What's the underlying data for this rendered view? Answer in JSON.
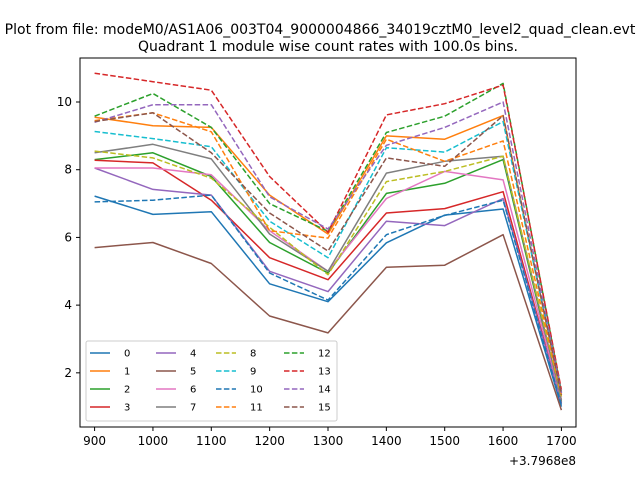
{
  "figure": {
    "suptitle": "Plot from file: modeM0/AS1A06_003T04_9000004866_34019cztM0_level2_quad_clean.evt"
  },
  "chart_data": {
    "type": "line",
    "title": "Quadrant 1 module wise count rates with 100.0s bins.",
    "xlabel": "",
    "ylabel": "",
    "x_offset_label": "+3.7968e8",
    "x": [
      900,
      1000,
      1100,
      1200,
      1300,
      1400,
      1500,
      1600,
      1700
    ],
    "xlim": [
      875,
      1725
    ],
    "ylim": [
      0.4,
      11.3
    ],
    "xticks": [
      900,
      1000,
      1100,
      1200,
      1300,
      1400,
      1500,
      1600,
      1700
    ],
    "yticks": [
      2,
      4,
      6,
      8,
      10
    ],
    "grid": false,
    "legend_location": "lower-left",
    "series": [
      {
        "name": "0",
        "color": "#1f77b4",
        "dashed": false,
        "values": [
          7.22,
          6.68,
          6.76,
          4.63,
          4.1,
          5.84,
          6.66,
          6.84,
          1.0
        ]
      },
      {
        "name": "1",
        "color": "#ff7f0e",
        "dashed": false,
        "values": [
          9.55,
          9.3,
          9.25,
          7.25,
          6.1,
          9.0,
          8.9,
          9.6,
          1.3
        ]
      },
      {
        "name": "2",
        "color": "#2ca02c",
        "dashed": false,
        "values": [
          8.3,
          8.5,
          7.8,
          5.85,
          4.95,
          7.3,
          7.6,
          8.3,
          1.15
        ]
      },
      {
        "name": "3",
        "color": "#d62728",
        "dashed": false,
        "values": [
          8.28,
          8.2,
          7.1,
          5.4,
          4.75,
          6.72,
          6.85,
          7.35,
          1.1
        ]
      },
      {
        "name": "4",
        "color": "#9467bd",
        "dashed": false,
        "values": [
          8.05,
          7.42,
          7.25,
          5.0,
          4.4,
          6.48,
          6.35,
          7.15,
          1.1
        ]
      },
      {
        "name": "5",
        "color": "#8c564b",
        "dashed": false,
        "values": [
          5.7,
          5.85,
          5.23,
          3.68,
          3.18,
          5.12,
          5.18,
          6.08,
          0.9
        ]
      },
      {
        "name": "6",
        "color": "#e377c2",
        "dashed": false,
        "values": [
          8.05,
          8.05,
          7.85,
          6.2,
          5.0,
          7.15,
          7.95,
          7.7,
          1.2
        ]
      },
      {
        "name": "7",
        "color": "#7f7f7f",
        "dashed": false,
        "values": [
          8.5,
          8.75,
          8.32,
          6.1,
          5.0,
          7.9,
          8.25,
          8.4,
          1.2
        ]
      },
      {
        "name": "8",
        "color": "#bcbd22",
        "dashed": true,
        "values": [
          8.55,
          8.35,
          7.75,
          6.3,
          4.9,
          7.65,
          7.95,
          8.4,
          1.3
        ]
      },
      {
        "name": "9",
        "color": "#17becf",
        "dashed": true,
        "values": [
          9.13,
          8.92,
          8.68,
          6.48,
          5.4,
          8.65,
          8.52,
          9.42,
          1.4
        ]
      },
      {
        "name": "10",
        "color": "#1f77b4",
        "dashed": true,
        "values": [
          7.05,
          7.1,
          7.25,
          4.95,
          4.15,
          6.08,
          6.65,
          7.1,
          1.05
        ]
      },
      {
        "name": "11",
        "color": "#ff7f0e",
        "dashed": true,
        "values": [
          9.45,
          9.68,
          9.12,
          6.2,
          5.98,
          8.9,
          8.25,
          8.85,
          1.35
        ]
      },
      {
        "name": "12",
        "color": "#2ca02c",
        "dashed": true,
        "values": [
          9.58,
          10.25,
          9.25,
          7.0,
          6.18,
          9.1,
          9.58,
          10.55,
          1.45
        ]
      },
      {
        "name": "13",
        "color": "#d62728",
        "dashed": true,
        "values": [
          10.85,
          10.6,
          10.35,
          7.8,
          6.15,
          9.62,
          9.95,
          10.5,
          1.5
        ]
      },
      {
        "name": "14",
        "color": "#9467bd",
        "dashed": true,
        "values": [
          9.4,
          9.92,
          9.92,
          7.2,
          6.25,
          8.72,
          9.25,
          10.0,
          1.4
        ]
      },
      {
        "name": "15",
        "color": "#8c564b",
        "dashed": true,
        "values": [
          9.42,
          9.68,
          8.5,
          6.72,
          5.6,
          8.35,
          8.1,
          9.6,
          1.35
        ]
      }
    ]
  }
}
